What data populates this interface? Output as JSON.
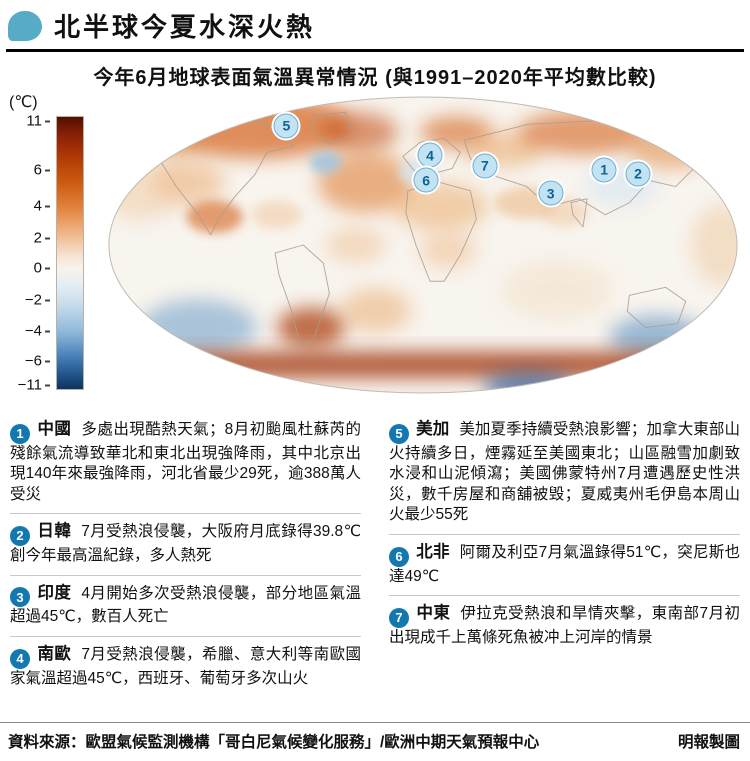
{
  "header": {
    "title": "北半球今夏水深火熱"
  },
  "subtitle": "今年6月地球表面氣溫異常情況 (與1991–2020年平均數比較)",
  "colorbar": {
    "unit_label": "(℃)",
    "ticks": [
      {
        "label": "11",
        "pos": 2
      },
      {
        "label": "6",
        "pos": 20
      },
      {
        "label": "4",
        "pos": 33
      },
      {
        "label": "2",
        "pos": 45
      },
      {
        "label": "0",
        "pos": 56
      },
      {
        "label": "−2",
        "pos": 67.5
      },
      {
        "label": "−4",
        "pos": 79
      },
      {
        "label": "−6",
        "pos": 90
      },
      {
        "label": "−11",
        "pos": 99
      }
    ]
  },
  "map": {
    "markers": [
      {
        "num": "1",
        "x": 78.4,
        "y": 25.1
      },
      {
        "num": "2",
        "x": 83.7,
        "y": 26.4
      },
      {
        "num": "3",
        "x": 70.0,
        "y": 32.9
      },
      {
        "num": "4",
        "x": 51.1,
        "y": 20.3
      },
      {
        "num": "5",
        "x": 28.6,
        "y": 10.5
      },
      {
        "num": "6",
        "x": 50.5,
        "y": 28.5
      },
      {
        "num": "7",
        "x": 59.7,
        "y": 23.7
      }
    ]
  },
  "regions": {
    "left": [
      {
        "num": "1",
        "name": "中國",
        "text": "多處出現酷熱天氣；8月初颱風杜蘇芮的殘餘氣流導致華北和東北出現強降雨，其中北京出現140年來最強降雨，河北省最少29死，逾388萬人受災"
      },
      {
        "num": "2",
        "name": "日韓",
        "text": "7月受熱浪侵襲，大阪府月底錄得39.8℃創今年最高溫紀錄，多人熱死"
      },
      {
        "num": "3",
        "name": "印度",
        "text": "4月開始多次受熱浪侵襲，部分地區氣溫超過45℃，數百人死亡"
      },
      {
        "num": "4",
        "name": "南歐",
        "text": "7月受熱浪侵襲，希臘、意大利等南歐國家氣溫超過45℃，西班牙、葡萄牙多次山火"
      }
    ],
    "right": [
      {
        "num": "5",
        "name": "美加",
        "text": "美加夏季持續受熱浪影響；加拿大東部山火持續多日，煙霧延至美國東北；山區融雪加劇致水浸和山泥傾瀉；美國佛蒙特州7月遭遇歷史性洪災，數千房屋和商舖被毁；夏威夷州毛伊島本周山火最少55死"
      },
      {
        "num": "6",
        "name": "北非",
        "text": "阿爾及利亞7月氣溫錄得51℃，突尼斯也達49℃"
      },
      {
        "num": "7",
        "name": "中東",
        "text": "伊拉克受熱浪和旱情夾擊，東南部7月初出現成千上萬條死魚被冲上河岸的情景"
      }
    ]
  },
  "footer": {
    "source": "資料來源：歐盟氣候監測機構「哥白尼氣候變化服務」/歐洲中期天氣預報中心",
    "credit": "明報製圖"
  },
  "chart_data": {
    "type": "heatmap",
    "title": "今年6月地球表面氣溫異常情況 (與1991–2020年平均數比較)",
    "subtype": "global-temperature-anomaly-map",
    "colorbar": {
      "unit": "℃",
      "ticks": [
        11,
        6,
        4,
        2,
        0,
        -2,
        -4,
        -6,
        -11
      ],
      "warm_color": "#b13a05",
      "zero_color": "#f8f3ec",
      "cold_color": "#0d335f",
      "orientation": "vertical",
      "position": "left"
    },
    "annotations": [
      {
        "id": 1,
        "region": "中國",
        "note": "多處出現酷熱天氣；8月初颱風杜蘇芮的殘餘氣流導致華北和東北出現強降雨，其中北京出現140年來最強降雨，河北省最少29死，逾388萬人受災"
      },
      {
        "id": 2,
        "region": "日韓",
        "note": "7月受熱浪侵襲，大阪府月底錄得39.8℃創今年最高溫紀錄，多人熱死"
      },
      {
        "id": 3,
        "region": "印度",
        "note": "4月開始多次受熱浪侵襲，部分地區氣溫超過45℃，數百人死亡"
      },
      {
        "id": 4,
        "region": "南歐",
        "note": "7月受熱浪侵襲，希臘、意大利等南歐國家氣溫超過45℃，西班牙、葡萄牙多次山火"
      },
      {
        "id": 5,
        "region": "美加",
        "note": "美加夏季持續受熱浪影響；加拿大東部山火持續多日，煙霧延至美國東北；山區融雪加劇致水浸和山泥傾瀉；美國佛蒙特州7月遭遇歷史性洪災，數千房屋和商舖被毁；夏威夷州毛伊島本周山火最少55死"
      },
      {
        "id": 6,
        "region": "北非",
        "note": "阿爾及利亞7月氣溫錄得51℃，突尼斯也達49℃"
      },
      {
        "id": 7,
        "region": "中東",
        "note": "伊拉克受熱浪和旱情夾擊，東南部7月初出現成千上萬條死魚被冲上河岸的情景"
      }
    ]
  }
}
